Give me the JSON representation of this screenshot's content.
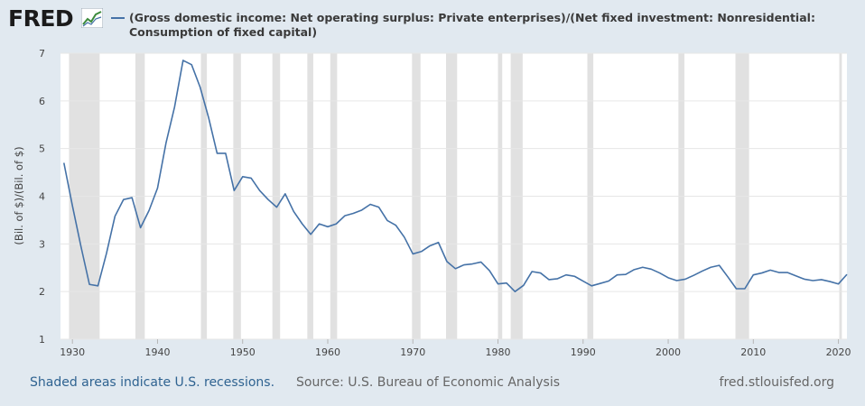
{
  "header": {
    "logo_text": "FRED",
    "logo_icon": "line-chart-icon",
    "series_title": "(Gross domestic income: Net operating surplus: Private enterprises)/(Net fixed investment: Nonresidential: Consumption of fixed capital)"
  },
  "footer": {
    "recession_note": "Shaded areas indicate U.S. recessions.",
    "source": "Source: U.S. Bureau of Economic Analysis",
    "site": "fred.stlouisfed.org"
  },
  "colors": {
    "line": "#4572a7",
    "recession": "#e1e1e1",
    "grid": "#e6e6e6",
    "background": "#e1e9f0"
  },
  "chart_data": {
    "type": "line",
    "title": "(Gross domestic income: Net operating surplus: Private enterprises)/(Net fixed investment: Nonresidential: Consumption of fixed capital)",
    "xlabel": "",
    "ylabel": "(Bil. of $)/(Bil. of $)",
    "xlim": [
      1928.6,
      2021.0
    ],
    "ylim": [
      1,
      7
    ],
    "grid": true,
    "x_ticks": [
      1930,
      1940,
      1950,
      1960,
      1970,
      1980,
      1990,
      2000,
      2010,
      2020
    ],
    "y_ticks": [
      1,
      2,
      3,
      4,
      5,
      6,
      7
    ],
    "recessions": [
      [
        1929.6,
        1933.2
      ],
      [
        1937.4,
        1938.5
      ],
      [
        1945.1,
        1945.8
      ],
      [
        1948.9,
        1949.8
      ],
      [
        1953.5,
        1954.4
      ],
      [
        1957.6,
        1958.3
      ],
      [
        1960.3,
        1961.1
      ],
      [
        1969.9,
        1970.9
      ],
      [
        1973.9,
        1975.2
      ],
      [
        1980.0,
        1980.5
      ],
      [
        1981.5,
        1982.9
      ],
      [
        1990.5,
        1991.2
      ],
      [
        2001.2,
        2001.9
      ],
      [
        2007.9,
        2009.5
      ],
      [
        2020.1,
        2020.4
      ]
    ],
    "series": [
      {
        "x": [
          1929,
          1930,
          1931,
          1932,
          1933,
          1934,
          1935,
          1936,
          1937,
          1938,
          1939,
          1940,
          1941,
          1942,
          1943,
          1944,
          1945,
          1946,
          1947,
          1948,
          1949,
          1950,
          1951,
          1952,
          1953,
          1954,
          1955,
          1956,
          1957,
          1958,
          1959,
          1960,
          1961,
          1962,
          1963,
          1964,
          1965,
          1966,
          1967,
          1968,
          1969,
          1970,
          1971,
          1972,
          1973,
          1974,
          1975,
          1976,
          1977,
          1978,
          1979,
          1980,
          1981,
          1982,
          1983,
          1984,
          1985,
          1986,
          1987,
          1988,
          1989,
          1990,
          1991,
          1992,
          1993,
          1994,
          1995,
          1996,
          1997,
          1998,
          1999,
          2000,
          2001,
          2002,
          2003,
          2004,
          2005,
          2006,
          2007,
          2008,
          2009,
          2010,
          2011,
          2012,
          2013,
          2014,
          2015,
          2016,
          2017,
          2018,
          2019,
          2020,
          2021
        ],
        "values": [
          4.7,
          3.8,
          2.95,
          2.15,
          2.12,
          2.8,
          3.58,
          3.93,
          3.97,
          3.34,
          3.7,
          4.17,
          5.12,
          5.87,
          6.85,
          6.76,
          6.29,
          5.65,
          4.9,
          4.9,
          4.12,
          4.41,
          4.38,
          4.12,
          3.93,
          3.77,
          4.05,
          3.68,
          3.42,
          3.2,
          3.42,
          3.36,
          3.42,
          3.59,
          3.64,
          3.71,
          3.83,
          3.77,
          3.49,
          3.39,
          3.14,
          2.79,
          2.84,
          2.96,
          3.03,
          2.63,
          2.48,
          2.56,
          2.58,
          2.62,
          2.44,
          2.16,
          2.18,
          2.0,
          2.13,
          2.42,
          2.39,
          2.25,
          2.27,
          2.35,
          2.32,
          2.22,
          2.12,
          2.17,
          2.22,
          2.35,
          2.36,
          2.46,
          2.51,
          2.47,
          2.39,
          2.29,
          2.23,
          2.26,
          2.34,
          2.43,
          2.51,
          2.55,
          2.31,
          2.06,
          2.06,
          2.35,
          2.39,
          2.45,
          2.4,
          2.4,
          2.33,
          2.26,
          2.23,
          2.25,
          2.21,
          2.16,
          2.36
        ]
      }
    ]
  }
}
